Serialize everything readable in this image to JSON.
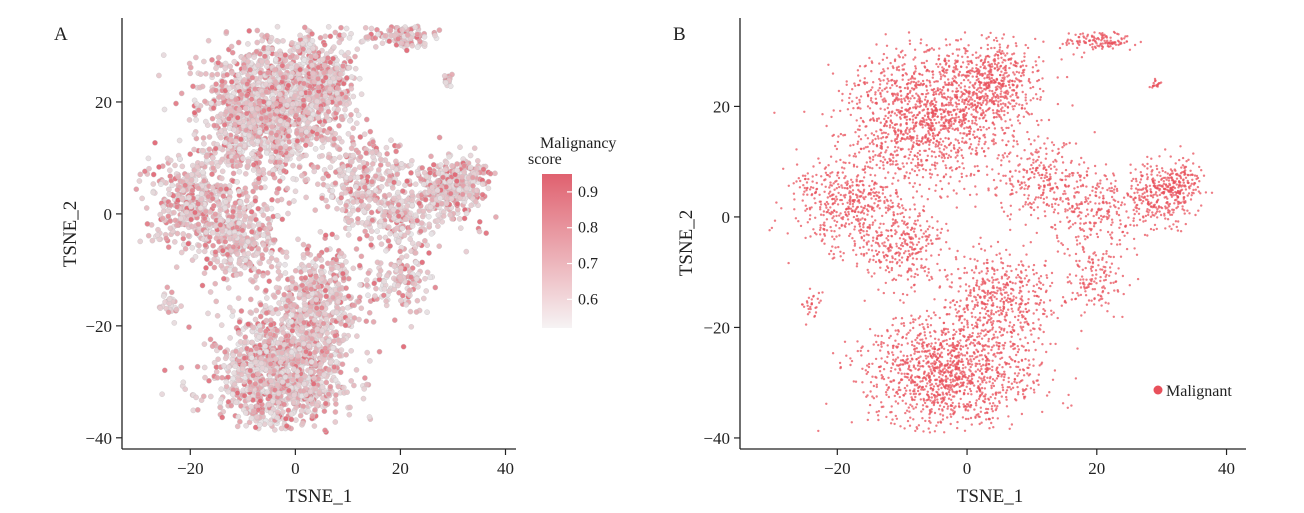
{
  "chart_data": [
    {
      "panel": "A",
      "type": "scatter",
      "xlabel": "TSNE_1",
      "ylabel": "TSNE_2",
      "xlim": [
        -33,
        42
      ],
      "ylim": [
        -42,
        35
      ],
      "xticks": [
        -20,
        0,
        20,
        40
      ],
      "yticks": [
        -40,
        -20,
        0,
        20
      ],
      "xtick_labels": [
        "−20",
        "0",
        "20",
        "40"
      ],
      "ytick_labels": [
        "−40",
        "−20",
        "0",
        "20"
      ],
      "color_by": "Malignancy score",
      "colorbar": {
        "title_line1": "Malignancy",
        "title_line2": "score",
        "range": [
          0.52,
          0.95
        ],
        "ticks": [
          0.9,
          0.8,
          0.7,
          0.6
        ],
        "tick_labels": [
          "0.9",
          "0.8",
          "0.7",
          "0.6"
        ],
        "color_low": "#f4f1f2",
        "color_high": "#e0616f"
      },
      "legend_position": "right",
      "grid": false
    },
    {
      "panel": "B",
      "type": "scatter",
      "xlabel": "TSNE_1",
      "ylabel": "TSNE_2",
      "xlim": [
        -35,
        43
      ],
      "ylim": [
        -42,
        36
      ],
      "xticks": [
        -20,
        0,
        20,
        40
      ],
      "yticks": [
        -40,
        -20,
        0,
        20
      ],
      "xtick_labels": [
        "−20",
        "0",
        "20",
        "40"
      ],
      "ytick_labels": [
        "−40",
        "−20",
        "0",
        "20"
      ],
      "series": [
        {
          "name": "Malignant",
          "color": "#e8505b"
        }
      ],
      "legend_position": "bottom-right",
      "grid": false
    }
  ],
  "panels": {
    "a_letter": "A",
    "b_letter": "B"
  }
}
